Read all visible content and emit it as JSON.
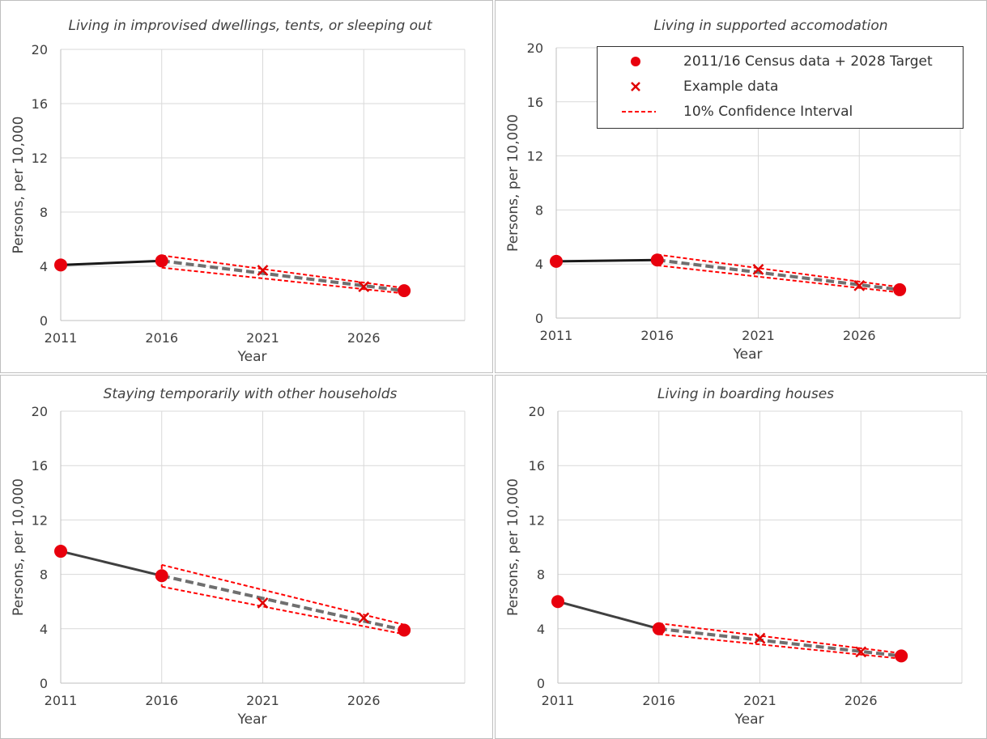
{
  "colors": {
    "census": "#e8000d",
    "example": "#e00000",
    "ci": "#ff0000",
    "history": "#000000",
    "trend": "#6f6f6f",
    "grid": "#d9d9d9"
  },
  "legend": {
    "census": "2011/16 Census data + 2028 Target",
    "example": "Example data",
    "ci": "10% Confidence Interval"
  },
  "chart_data": [
    {
      "type": "line",
      "title": "Living in improvised dwellings, tents, or sleeping out",
      "xlabel": "Year",
      "ylabel": "Persons, per 10,000",
      "xlim": [
        2011,
        2031
      ],
      "ylim": [
        0,
        20
      ],
      "xticks": [
        2011,
        2016,
        2021,
        2026
      ],
      "yticks": [
        0,
        4,
        8,
        12,
        16,
        20
      ],
      "grid": true,
      "census_points": [
        [
          2011,
          4.1
        ],
        [
          2016,
          4.4
        ],
        [
          2028,
          2.2
        ]
      ],
      "example_points": [
        [
          2021,
          3.7
        ],
        [
          2026,
          2.5
        ]
      ],
      "trend": [
        [
          2016,
          4.4
        ],
        [
          2028,
          2.2
        ]
      ],
      "ci_upper": [
        [
          2016,
          4.8
        ],
        [
          2028,
          2.4
        ]
      ],
      "ci_lower": [
        [
          2016,
          3.9
        ],
        [
          2028,
          2.0
        ]
      ]
    },
    {
      "type": "line",
      "title": "Living in supported accomodation",
      "xlabel": "Year",
      "ylabel": "Persons, per 10,000",
      "xlim": [
        2011,
        2031
      ],
      "ylim": [
        0,
        20
      ],
      "xticks": [
        2011,
        2016,
        2021,
        2026
      ],
      "yticks": [
        0,
        4,
        8,
        12,
        16,
        20
      ],
      "grid": true,
      "legend_position": "top-right",
      "census_points": [
        [
          2011,
          4.2
        ],
        [
          2016,
          4.3
        ],
        [
          2028,
          2.1
        ]
      ],
      "example_points": [
        [
          2021,
          3.6
        ],
        [
          2026,
          2.4
        ]
      ],
      "trend": [
        [
          2016,
          4.3
        ],
        [
          2028,
          2.1
        ]
      ],
      "ci_upper": [
        [
          2016,
          4.7
        ],
        [
          2028,
          2.3
        ]
      ],
      "ci_lower": [
        [
          2016,
          3.9
        ],
        [
          2028,
          1.9
        ]
      ]
    },
    {
      "type": "line",
      "title": "Staying temporarily with other households",
      "xlabel": "Year",
      "ylabel": "Persons, per 10,000",
      "xlim": [
        2011,
        2031
      ],
      "ylim": [
        0,
        20
      ],
      "xticks": [
        2011,
        2016,
        2021,
        2026
      ],
      "yticks": [
        0,
        4,
        8,
        12,
        16,
        20
      ],
      "grid": true,
      "census_points": [
        [
          2011,
          9.7
        ],
        [
          2016,
          7.9
        ],
        [
          2028,
          3.9
        ]
      ],
      "example_points": [
        [
          2021,
          5.9
        ],
        [
          2026,
          4.8
        ]
      ],
      "trend": [
        [
          2016,
          7.9
        ],
        [
          2028,
          3.9
        ]
      ],
      "ci_upper": [
        [
          2016,
          8.7
        ],
        [
          2028,
          4.3
        ]
      ],
      "ci_lower": [
        [
          2016,
          7.1
        ],
        [
          2028,
          3.6
        ]
      ]
    },
    {
      "type": "line",
      "title": "Living in boarding houses",
      "xlabel": "Year",
      "ylabel": "Persons, per 10,000",
      "xlim": [
        2011,
        2031
      ],
      "ylim": [
        0,
        20
      ],
      "xticks": [
        2011,
        2016,
        2021,
        2026
      ],
      "yticks": [
        0,
        4,
        8,
        12,
        16,
        20
      ],
      "grid": true,
      "census_points": [
        [
          2011,
          6.0
        ],
        [
          2016,
          4.0
        ],
        [
          2028,
          2.0
        ]
      ],
      "example_points": [
        [
          2021,
          3.3
        ],
        [
          2026,
          2.3
        ]
      ],
      "trend": [
        [
          2016,
          4.0
        ],
        [
          2028,
          2.0
        ]
      ],
      "ci_upper": [
        [
          2016,
          4.4
        ],
        [
          2028,
          2.2
        ]
      ],
      "ci_lower": [
        [
          2016,
          3.6
        ],
        [
          2028,
          1.8
        ]
      ]
    }
  ]
}
